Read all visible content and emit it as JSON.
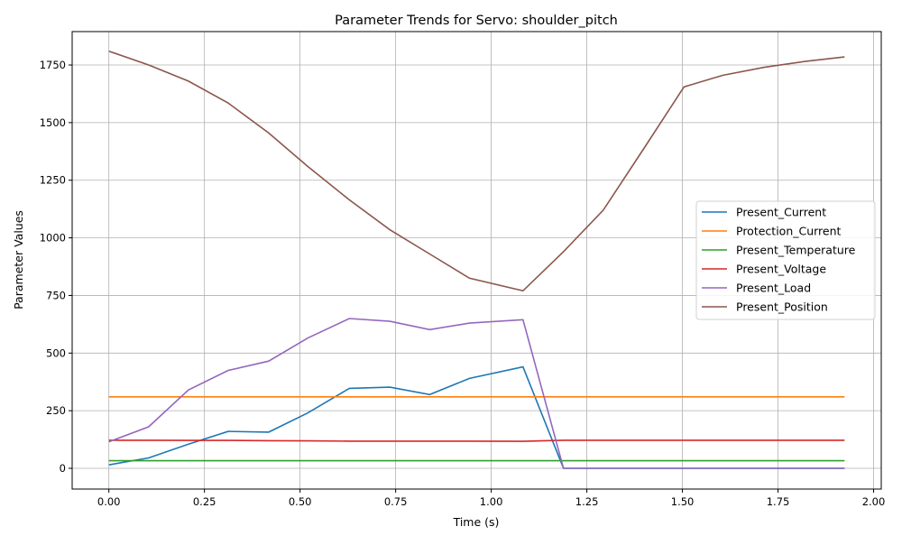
{
  "chart_data": {
    "type": "line",
    "title": "Parameter Trends for Servo: shoulder_pitch",
    "xlabel": "Time (s)",
    "ylabel": "Parameter Values",
    "xlim": [
      -0.096,
      2.02
    ],
    "ylim": [
      -90,
      1895
    ],
    "grid": true,
    "legend_position": "center-right",
    "xticks": [
      0.0,
      0.25,
      0.5,
      0.75,
      1.0,
      1.25,
      1.5,
      1.75,
      2.0
    ],
    "xtick_labels": [
      "0.00",
      "0.25",
      "0.50",
      "0.75",
      "1.00",
      "1.25",
      "1.50",
      "1.75",
      "2.00"
    ],
    "yticks": [
      0,
      250,
      500,
      750,
      1000,
      1250,
      1500,
      1750
    ],
    "ytick_labels": [
      "0",
      "250",
      "500",
      "750",
      "1000",
      "1250",
      "1500",
      "1750"
    ],
    "x": [
      0.0,
      0.104,
      0.208,
      0.312,
      0.418,
      0.52,
      0.629,
      0.735,
      0.839,
      0.943,
      1.083,
      1.189,
      1.293,
      1.4,
      1.504,
      1.605,
      1.714,
      1.818,
      1.924
    ],
    "series": [
      {
        "name": "Present_Current",
        "color": "#1f77b4",
        "values": [
          15,
          45,
          105,
          160,
          157,
          240,
          347,
          352,
          320,
          390,
          440,
          0,
          0,
          0,
          0,
          0,
          0,
          0,
          0
        ]
      },
      {
        "name": "Protection_Current",
        "color": "#ff7f0e",
        "values": [
          310,
          310,
          310,
          310,
          310,
          310,
          310,
          310,
          310,
          310,
          310,
          310,
          310,
          310,
          310,
          310,
          310,
          310,
          310
        ]
      },
      {
        "name": "Present_Temperature",
        "color": "#2ca02c",
        "values": [
          33,
          33,
          33,
          33,
          33,
          33,
          33,
          33,
          33,
          33,
          33,
          33,
          33,
          33,
          33,
          33,
          33,
          33,
          33
        ]
      },
      {
        "name": "Present_Voltage",
        "color": "#d62728",
        "values": [
          122,
          122,
          121,
          121,
          120,
          119,
          118,
          118,
          118,
          118,
          117,
          122,
          122,
          122,
          122,
          122,
          122,
          122,
          122
        ]
      },
      {
        "name": "Present_Load",
        "color": "#9467bd",
        "values": [
          115,
          180,
          340,
          425,
          465,
          565,
          650,
          638,
          602,
          630,
          645,
          0,
          0,
          0,
          0,
          0,
          0,
          0,
          0
        ]
      },
      {
        "name": "Present_Position",
        "color": "#8c564b",
        "values": [
          1810,
          1750,
          1680,
          1585,
          1455,
          1310,
          1165,
          1035,
          930,
          825,
          770,
          940,
          1120,
          1390,
          1655,
          1705,
          1740,
          1765,
          1785
        ]
      }
    ]
  }
}
